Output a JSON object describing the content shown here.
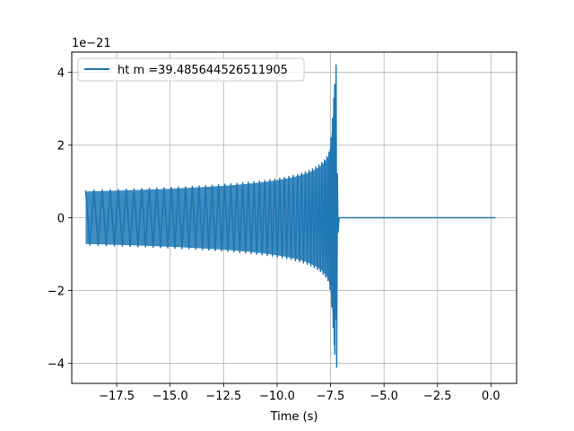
{
  "chart_data": {
    "type": "line",
    "title": "",
    "xlabel": "Time (s)",
    "ylabel": "",
    "y_offset_text": "1e−21",
    "xlim": [
      -19.6,
      1.2
    ],
    "ylim": [
      -4.55,
      4.55
    ],
    "x_ticks": [
      -17.5,
      -15.0,
      -12.5,
      -10.0,
      -7.5,
      -5.0,
      -2.5,
      0.0
    ],
    "x_tick_labels": [
      "−17.5",
      "−15.0",
      "−12.5",
      "−10.0",
      "−7.5",
      "−5.0",
      "−2.5",
      "0.0"
    ],
    "y_ticks": [
      -4,
      -2,
      0,
      2,
      4
    ],
    "y_tick_labels": [
      "−4",
      "−2",
      "0",
      "2",
      "4"
    ],
    "grid": true,
    "legend_position": "upper left",
    "series": [
      {
        "name": "ht m =39.485644526511905",
        "color": "#1f77b4",
        "signal": "chirp",
        "t_start": -18.95,
        "t_merger": -7.25,
        "t_end": 0.2,
        "amplitude_start": 0.75,
        "amplitude_peak": 4.2,
        "amplitude_min": -4.1
      }
    ]
  }
}
